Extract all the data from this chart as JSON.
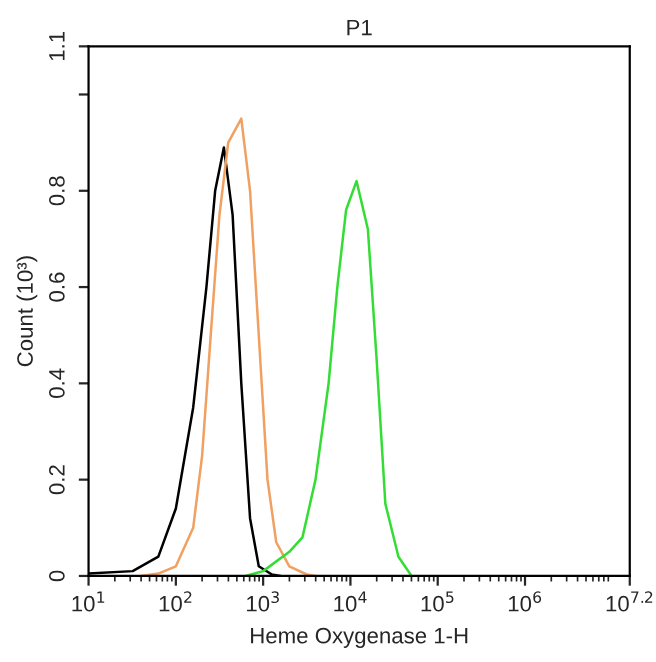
{
  "chart_data": {
    "type": "line",
    "title": "P1",
    "xlabel": "Heme Oxygenase 1-H",
    "ylabel": "Count (10³)",
    "log": "x",
    "xlim": [
      10,
      15849000
    ],
    "ylim": [
      0,
      1.1
    ],
    "xticks": [
      {
        "value": 10,
        "label": "10$^{1}$"
      },
      {
        "value": 100,
        "label": "10$^{2}$"
      },
      {
        "value": 1000,
        "label": "10$^{3}$"
      },
      {
        "value": 10000,
        "label": "10$^{4}$"
      },
      {
        "value": 100000,
        "label": "10$^{5}$"
      },
      {
        "value": 1000000,
        "label": "10$^{6}$"
      },
      {
        "value": 15849000,
        "label": "10$^{7.2}$"
      }
    ],
    "yticks": [
      0,
      0.2,
      0.4,
      0.6,
      0.8,
      {
        "value": 1.0,
        "label": null
      },
      1.1
    ],
    "grid": false,
    "legend": false,
    "series": [
      {
        "color": "#000000",
        "x": [
          10,
          32,
          63,
          100,
          158,
          224,
          282,
          355,
          447,
          562,
          708,
          891,
          1259,
          1585
        ],
        "values": [
          0.005,
          0.01,
          0.04,
          0.14,
          0.35,
          0.6,
          0.8,
          0.89,
          0.75,
          0.4,
          0.12,
          0.02,
          0.003,
          0
        ]
      },
      {
        "color": "#f0a060",
        "x": [
          40,
          63,
          100,
          158,
          200,
          251,
          316,
          398,
          562,
          708,
          891,
          1122,
          1413,
          1995,
          3162,
          3981
        ],
        "values": [
          0,
          0.005,
          0.02,
          0.1,
          0.25,
          0.5,
          0.75,
          0.9,
          0.95,
          0.8,
          0.5,
          0.2,
          0.07,
          0.02,
          0.003,
          0
        ]
      },
      {
        "color": "#33dd33",
        "x": [
          631,
          1000,
          1995,
          2818,
          3981,
          5623,
          7079,
          8913,
          11749,
          15849,
          19953,
          25119,
          35481,
          50119
        ],
        "values": [
          0,
          0.01,
          0.05,
          0.08,
          0.2,
          0.4,
          0.6,
          0.76,
          0.82,
          0.72,
          0.45,
          0.15,
          0.04,
          0
        ]
      }
    ]
  }
}
